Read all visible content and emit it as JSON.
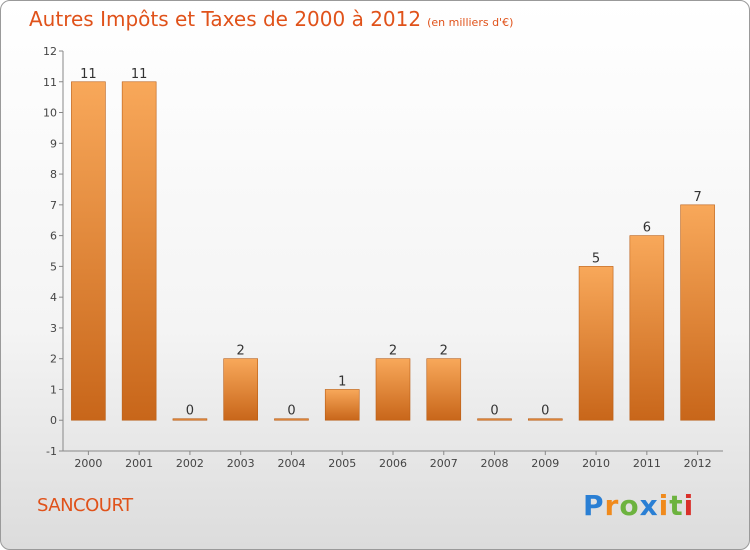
{
  "title": "Autres Impôts et Taxes de 2000 à 2012",
  "subtitle": "(en milliers d'€)",
  "commune": "SANCOURT",
  "logo": {
    "letters": [
      "P",
      "r",
      "o",
      "x",
      "i",
      "t",
      "i"
    ],
    "colors": [
      "#2a7fd4",
      "#f08a1c",
      "#6db33f",
      "#2a7fd4",
      "#f08a1c",
      "#6db33f",
      "#d9302a"
    ]
  },
  "colors": {
    "bar_light": "#f8a85a",
    "bar_dark": "#c8661a",
    "accent": "#e0521a"
  },
  "chart_data": {
    "type": "bar",
    "title": "Autres Impôts et Taxes de 2000 à 2012",
    "subtitle": "(en milliers d'€)",
    "categories": [
      "2000",
      "2001",
      "2002",
      "2003",
      "2004",
      "2005",
      "2006",
      "2007",
      "2008",
      "2009",
      "2010",
      "2011",
      "2012"
    ],
    "values": [
      11,
      11,
      0,
      2,
      0,
      1,
      2,
      2,
      0,
      0,
      5,
      6,
      7
    ],
    "data_labels": [
      "11",
      "11",
      "0",
      "2",
      "0",
      "1",
      "2",
      "2",
      "0",
      "0",
      "5",
      "6",
      "7"
    ],
    "yticks": [
      -1,
      0,
      1,
      2,
      3,
      4,
      5,
      6,
      7,
      8,
      9,
      10,
      11,
      12
    ],
    "ylim": [
      -1,
      12
    ],
    "xlabel": "",
    "ylabel": "",
    "grid": false,
    "legend": "none"
  }
}
